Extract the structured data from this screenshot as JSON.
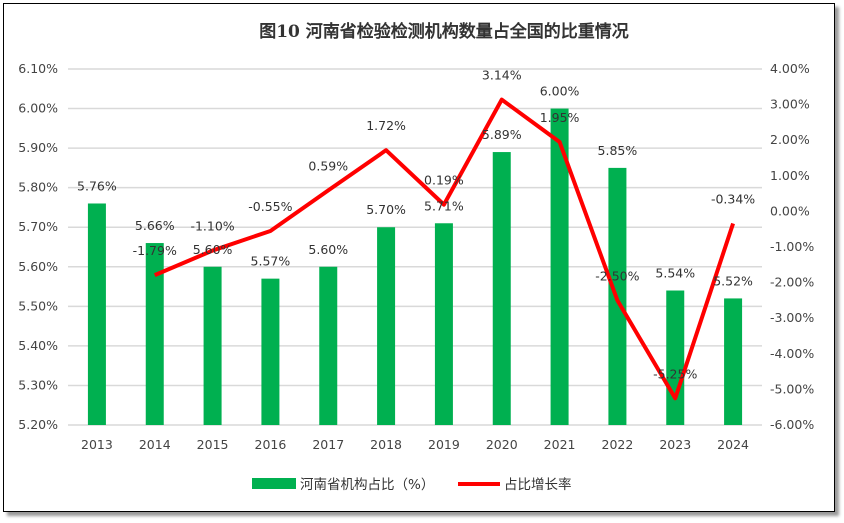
{
  "chart_data": {
    "type": "bar+line",
    "title": "图10  河南省检验检测机构数量占全国的比重情况",
    "categories": [
      "2013",
      "2014",
      "2015",
      "2016",
      "2017",
      "2018",
      "2019",
      "2020",
      "2021",
      "2022",
      "2023",
      "2024"
    ],
    "series": [
      {
        "name": "河南省机构占比（%）",
        "type": "bar",
        "axis": "left",
        "color": "#00B050",
        "values": [
          5.76,
          5.66,
          5.6,
          5.57,
          5.6,
          5.7,
          5.71,
          5.89,
          6.0,
          5.85,
          5.54,
          5.52
        ],
        "labels": [
          "5.76%",
          "5.66%",
          "5.60%",
          "5.57%",
          "5.60%",
          "5.70%",
          "5.71%",
          "5.89%",
          "6.00%",
          "5.85%",
          "5.54%",
          "5.52%"
        ]
      },
      {
        "name": "占比增长率",
        "type": "line",
        "axis": "right",
        "color": "#FF0000",
        "values": [
          null,
          -1.79,
          -1.1,
          -0.55,
          0.59,
          1.72,
          0.19,
          3.14,
          1.95,
          -2.5,
          -5.25,
          -0.34
        ],
        "labels": [
          "",
          "-1.79%",
          "-1.10%",
          "-0.55%",
          "0.59%",
          "1.72%",
          "0.19%",
          "3.14%",
          "1.95%",
          "-2.50%",
          "-5.25%",
          "-0.34%"
        ]
      }
    ],
    "y_left": {
      "range": [
        5.2,
        6.1
      ],
      "ticks": [
        "5.20%",
        "5.30%",
        "5.40%",
        "5.50%",
        "5.60%",
        "5.70%",
        "5.80%",
        "5.90%",
        "6.00%",
        "6.10%"
      ]
    },
    "y_right": {
      "range": [
        -6.0,
        4.0
      ],
      "ticks": [
        "-6.00%",
        "-5.00%",
        "-4.00%",
        "-3.00%",
        "-2.00%",
        "-1.00%",
        "0.00%",
        "1.00%",
        "2.00%",
        "3.00%",
        "4.00%"
      ]
    },
    "grid": true,
    "legend_position": "bottom"
  }
}
